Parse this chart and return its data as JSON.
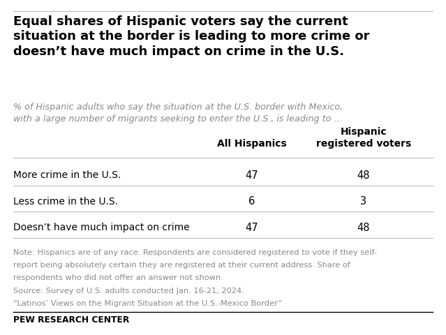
{
  "title": "Equal shares of Hispanic voters say the current\nsituation at the border is leading to more crime or\ndoesn’t have much impact on crime in the U.S.",
  "subtitle": "% of Hispanic adults who say the situation at the U.S. border with Mexico,\nwith a large number of migrants seeking to enter the U.S., is leading to …",
  "col_headers": [
    "All Hispanics",
    "Hispanic\nregistered voters"
  ],
  "row_labels": [
    "More crime in the U.S.",
    "Less crime in the U.S.",
    "Doesn’t have much impact on crime"
  ],
  "values": [
    [
      47,
      48
    ],
    [
      6,
      3
    ],
    [
      47,
      48
    ]
  ],
  "note_line1": "Note: Hispanics are of any race. Respondents are considered registered to vote if they self-",
  "note_line2": "report being absolutely certain they are registered at their current address. Share of",
  "note_line3": "respondents who did not offer an answer not shown.",
  "note_line4": "Source: Survey of U.S. adults conducted Jan. 16-21, 2024.",
  "note_line5": "“Latinos’ Views on the Migrant Situation at the U.S.-Mexico Border”",
  "footer": "PEW RESEARCH CENTER",
  "background_color": "#ffffff",
  "title_color": "#000000",
  "subtitle_color": "#888888",
  "note_color": "#888888",
  "footer_color": "#000000",
  "line_color": "#bbbbbb",
  "title_fontsize": 13.0,
  "subtitle_fontsize": 9.2,
  "header_fontsize": 10.0,
  "data_fontsize": 10.5,
  "row_fontsize": 10.0,
  "note_fontsize": 8.2,
  "footer_fontsize": 8.8
}
